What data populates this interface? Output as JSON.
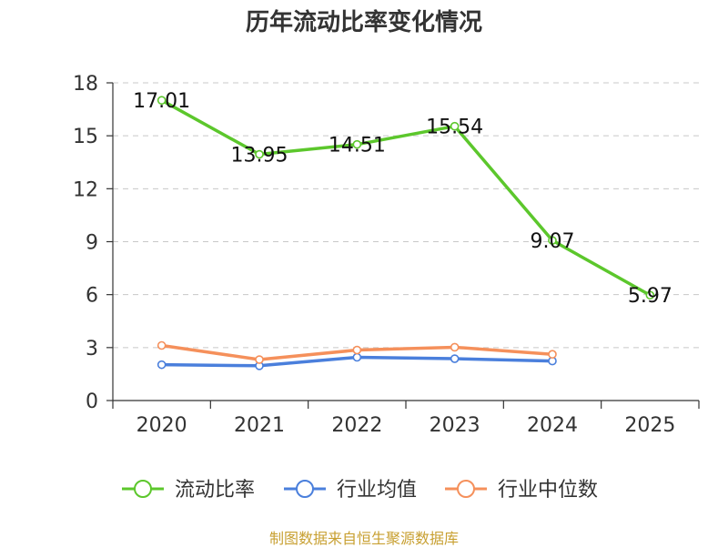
{
  "chart_data": {
    "type": "line",
    "title": "历年流动比率变化情况",
    "categories": [
      "2020",
      "2021",
      "2022",
      "2023",
      "2024",
      "2025"
    ],
    "ylim": [
      0,
      18
    ],
    "yticks": [
      "0",
      "3",
      "6",
      "9",
      "12",
      "15",
      "18"
    ],
    "grid": true,
    "legend_position": "bottom",
    "series": [
      {
        "name": "流动比率",
        "color": "#5cc72c",
        "values": [
          17.01,
          13.95,
          14.51,
          15.54,
          9.07,
          5.97
        ],
        "labels": [
          "17.01",
          "13.95",
          "14.51",
          "15.54",
          "9.07",
          "5.97"
        ]
      },
      {
        "name": "行业均值",
        "color": "#4a7fdc",
        "values": [
          2.03,
          1.97,
          2.45,
          2.37,
          2.24,
          null
        ]
      },
      {
        "name": "行业中位数",
        "color": "#f5905b",
        "values": [
          3.12,
          2.32,
          2.86,
          3.02,
          2.62,
          null
        ]
      }
    ]
  },
  "source": "制图数据来自恒生聚源数据库"
}
